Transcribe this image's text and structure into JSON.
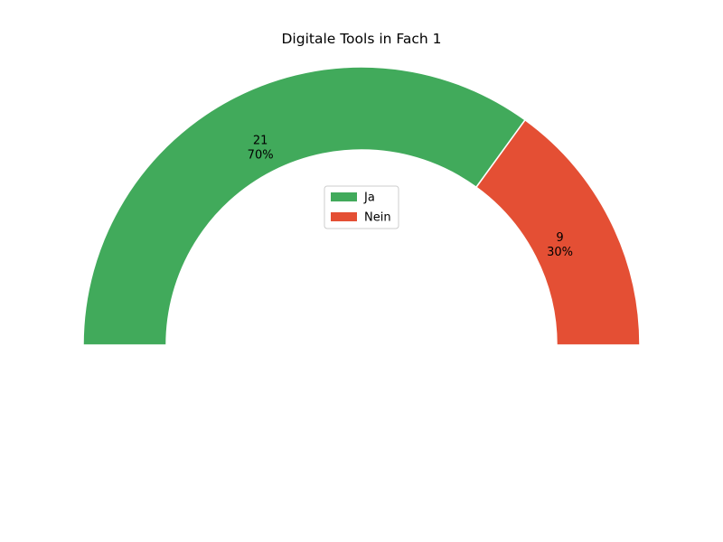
{
  "chart_data": {
    "type": "pie",
    "variant": "half-donut",
    "title": "Digitale Tools in Fach 1",
    "categories": [
      "Ja",
      "Nein"
    ],
    "values": [
      21,
      9
    ],
    "percent_labels": [
      "70%",
      "30%"
    ],
    "colors": [
      "#41aa5b",
      "#e44f34"
    ],
    "legend": {
      "placement": "center",
      "entries": [
        "Ja",
        "Nein"
      ]
    }
  }
}
